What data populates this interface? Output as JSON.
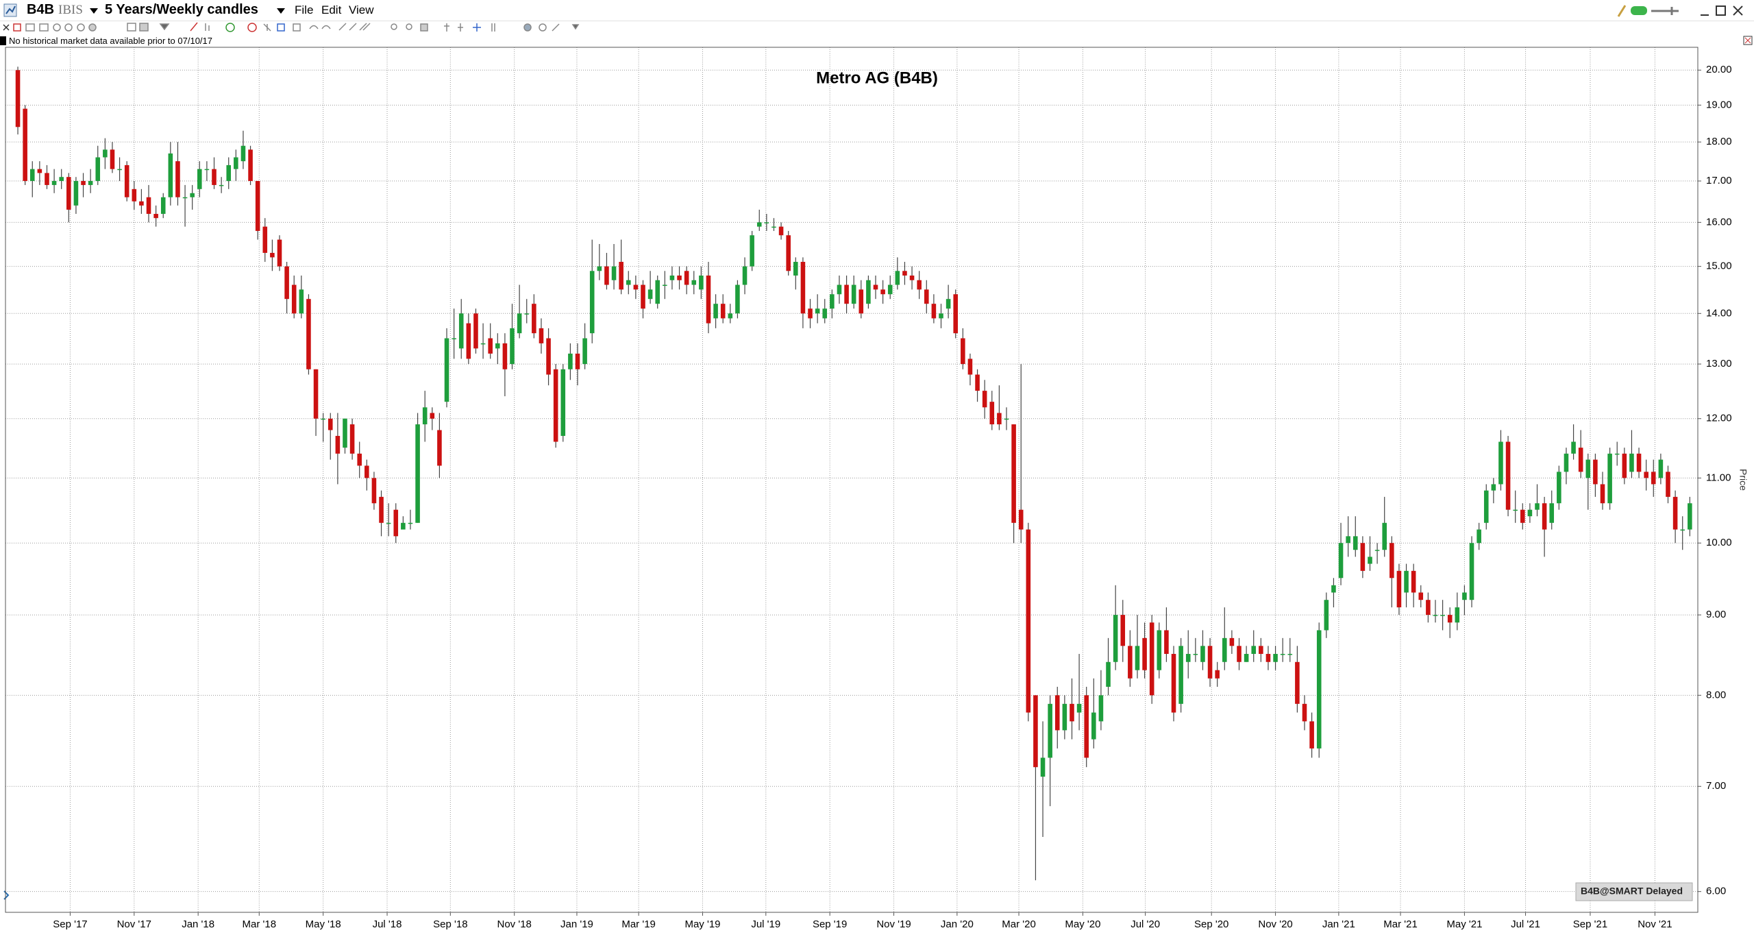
{
  "header": {
    "symbol": "B4B",
    "exchange": "IBIS",
    "period": "5 Years/Weekly candles",
    "menu": [
      "File",
      "Edit",
      "View"
    ],
    "notice": "No historical market data available prior to 07/10/17"
  },
  "chart_data": {
    "type": "candlestick",
    "title": "Metro AG (B4B)",
    "y_label": "Price",
    "watermark": "B4B@SMART Delayed",
    "log_scale": true,
    "grid": true,
    "up_color": "#1e9e3c",
    "down_color": "#cc1111",
    "wick_color": "#444444",
    "xlim": [
      -1.7,
      231.1
    ],
    "ylim": [
      5.82,
      20.68
    ],
    "xticks": [
      {
        "value": 7.2,
        "label": "Sep '17"
      },
      {
        "value": 16.0,
        "label": "Nov '17"
      },
      {
        "value": 24.8,
        "label": "Jan '18"
      },
      {
        "value": 33.2,
        "label": "Mar '18"
      },
      {
        "value": 42.0,
        "label": "May '18"
      },
      {
        "value": 50.8,
        "label": "Jul '18"
      },
      {
        "value": 59.5,
        "label": "Sep '18"
      },
      {
        "value": 68.3,
        "label": "Nov '18"
      },
      {
        "value": 76.9,
        "label": "Jan '19"
      },
      {
        "value": 85.4,
        "label": "Mar '19"
      },
      {
        "value": 94.2,
        "label": "May '19"
      },
      {
        "value": 102.9,
        "label": "Jul '19"
      },
      {
        "value": 111.7,
        "label": "Sep '19"
      },
      {
        "value": 120.5,
        "label": "Nov '19"
      },
      {
        "value": 129.2,
        "label": "Jan '20"
      },
      {
        "value": 137.7,
        "label": "Mar '20"
      },
      {
        "value": 146.5,
        "label": "May '20"
      },
      {
        "value": 155.1,
        "label": "Jul '20"
      },
      {
        "value": 164.2,
        "label": "Sep '20"
      },
      {
        "value": 173.0,
        "label": "Nov '20"
      },
      {
        "value": 181.7,
        "label": "Jan '21"
      },
      {
        "value": 190.2,
        "label": "Mar '21"
      },
      {
        "value": 199.0,
        "label": "May '21"
      },
      {
        "value": 207.4,
        "label": "Jul '21"
      },
      {
        "value": 216.3,
        "label": "Sep '21"
      },
      {
        "value": 225.2,
        "label": "Nov '21"
      }
    ],
    "yticks": [
      {
        "value": 6,
        "label": "6.00"
      },
      {
        "value": 7,
        "label": "7.00"
      },
      {
        "value": 8,
        "label": "8.00"
      },
      {
        "value": 9,
        "label": "9.00"
      },
      {
        "value": 10,
        "label": "10.00"
      },
      {
        "value": 11,
        "label": "11.00"
      },
      {
        "value": 12,
        "label": "12.00"
      },
      {
        "value": 13,
        "label": "13.00"
      },
      {
        "value": 14,
        "label": "14.00"
      },
      {
        "value": 15,
        "label": "15.00"
      },
      {
        "value": 16,
        "label": "16.00"
      },
      {
        "value": 17,
        "label": "17.00"
      },
      {
        "value": 18,
        "label": "18.00"
      },
      {
        "value": 19,
        "label": "19.00"
      },
      {
        "value": 20,
        "label": "20.00"
      }
    ],
    "open": [
      20.0,
      18.9,
      17.0,
      17.3,
      17.2,
      16.9,
      17.0,
      17.1,
      16.4,
      17.0,
      16.9,
      17.0,
      17.6,
      17.8,
      17.3,
      17.4,
      16.8,
      16.5,
      16.6,
      16.2,
      16.2,
      16.6,
      17.5,
      16.6,
      16.6,
      16.8,
      17.3,
      17.3,
      16.9,
      17.0,
      17.3,
      17.5,
      17.8,
      17.0,
      15.9,
      15.3,
      15.6,
      15.0,
      14.6,
      14.0,
      14.3,
      12.9,
      12.0,
      12.0,
      11.7,
      11.5,
      11.9,
      11.4,
      11.2,
      11.0,
      10.7,
      10.3,
      10.5,
      10.2,
      10.3,
      10.3,
      11.9,
      12.1,
      11.8,
      12.3,
      13.5,
      13.3,
      13.8,
      14.0,
      13.4,
      13.5,
      13.3,
      13.4,
      13.0,
      13.6,
      14.0,
      14.2,
      13.7,
      13.5,
      12.9,
      11.7,
      12.9,
      13.2,
      13.0,
      13.6,
      14.9,
      15.0,
      14.7,
      15.1,
      14.6,
      14.6,
      14.6,
      14.3,
      14.2,
      14.6,
      14.7,
      14.8,
      14.9,
      14.6,
      14.5,
      14.8,
      13.9,
      14.2,
      13.9,
      14.0,
      14.6,
      15.0,
      15.9,
      16.0,
      15.9,
      15.9,
      15.7,
      14.8,
      15.1,
      14.1,
      14.0,
      13.9,
      14.1,
      14.4,
      14.6,
      14.2,
      14.5,
      14.2,
      14.6,
      14.5,
      14.4,
      14.6,
      14.9,
      14.8,
      14.7,
      14.5,
      14.2,
      13.9,
      14.1,
      14.4,
      13.5,
      13.1,
      12.8,
      12.5,
      12.3,
      12.1,
      12.0,
      11.9,
      10.5,
      10.2,
      8.0,
      7.1,
      7.3,
      8.0,
      7.6,
      7.9,
      7.8,
      8.0,
      7.5,
      7.7,
      8.1,
      8.4,
      9.0,
      8.6,
      8.3,
      8.7,
      8.9,
      8.3,
      8.8,
      8.5,
      7.9,
      8.4,
      8.5,
      8.4,
      8.6,
      8.3,
      8.4,
      8.7,
      8.6,
      8.4,
      8.5,
      8.6,
      8.5,
      8.4,
      8.5,
      8.5,
      8.4,
      7.9,
      7.7,
      7.4,
      8.8,
      9.3,
      9.5,
      10.0,
      9.9,
      10.0,
      9.7,
      9.9,
      9.9,
      10.0,
      9.6,
      9.3,
      9.6,
      9.3,
      9.2,
      9.0,
      9.0,
      9.0,
      8.9,
      9.2,
      9.2,
      10.0,
      10.3,
      10.8,
      10.9,
      11.6,
      10.5,
      10.5,
      10.4,
      10.5,
      10.6,
      10.3,
      10.6,
      11.1,
      11.4,
      11.5,
      11.0,
      11.3,
      10.9,
      10.6,
      11.4,
      11.4,
      11.1,
      11.4,
      11.1,
      11.1,
      11.0,
      11.1,
      10.7,
      10.2,
      10.2
    ],
    "high": [
      20.1,
      19.0,
      17.5,
      17.5,
      17.4,
      17.3,
      17.3,
      17.2,
      17.1,
      17.2,
      17.3,
      17.9,
      18.1,
      18.0,
      17.6,
      17.5,
      17.0,
      16.8,
      16.9,
      16.4,
      16.7,
      18.0,
      18.0,
      16.9,
      16.9,
      17.5,
      17.5,
      17.6,
      17.1,
      17.6,
      17.8,
      18.3,
      17.9,
      17.0,
      16.1,
      15.6,
      15.7,
      15.1,
      14.8,
      14.8,
      14.4,
      12.9,
      12.1,
      12.1,
      12.1,
      12.0,
      12.0,
      11.6,
      11.3,
      11.1,
      10.8,
      10.6,
      10.6,
      10.4,
      10.5,
      12.1,
      12.5,
      12.2,
      12.1,
      13.7,
      14.1,
      14.3,
      14.0,
      14.1,
      13.8,
      13.8,
      13.6,
      13.6,
      14.2,
      14.6,
      14.3,
      14.4,
      13.9,
      13.7,
      13.0,
      13.0,
      13.4,
      13.4,
      13.8,
      15.6,
      15.5,
      15.3,
      15.5,
      15.6,
      14.9,
      14.8,
      14.7,
      14.9,
      14.8,
      14.9,
      15.0,
      15.0,
      15.0,
      14.9,
      15.0,
      15.1,
      14.4,
      14.4,
      14.2,
      14.7,
      15.2,
      15.8,
      16.3,
      16.2,
      16.1,
      16.0,
      15.8,
      15.2,
      15.2,
      14.3,
      14.4,
      14.3,
      14.5,
      14.8,
      14.8,
      14.8,
      14.7,
      14.8,
      14.8,
      14.7,
      14.8,
      15.2,
      15.1,
      15.0,
      14.9,
      14.7,
      14.4,
      14.2,
      14.6,
      14.5,
      13.7,
      13.2,
      12.9,
      12.7,
      12.5,
      12.6,
      12.2,
      11.9,
      13.0,
      10.3,
      8.0,
      7.7,
      8.0,
      8.1,
      8.0,
      8.2,
      8.5,
      8.1,
      8.2,
      8.3,
      8.7,
      9.4,
      9.2,
      8.8,
      9.0,
      8.9,
      9.0,
      8.9,
      9.1,
      8.6,
      8.7,
      8.8,
      8.7,
      8.8,
      8.7,
      8.4,
      9.1,
      8.8,
      8.7,
      8.6,
      8.8,
      8.7,
      8.6,
      8.6,
      8.7,
      8.7,
      8.6,
      8.0,
      7.8,
      8.9,
      9.3,
      9.5,
      10.3,
      10.4,
      10.4,
      10.1,
      10.1,
      10.0,
      10.7,
      10.1,
      9.7,
      9.7,
      9.7,
      9.4,
      9.3,
      9.2,
      9.2,
      9.1,
      9.3,
      9.4,
      10.1,
      10.3,
      10.9,
      11.0,
      11.8,
      11.7,
      10.8,
      10.6,
      10.6,
      10.9,
      10.7,
      10.8,
      11.2,
      11.5,
      11.9,
      11.8,
      11.4,
      11.4,
      11.1,
      11.5,
      11.6,
      11.5,
      11.8,
      11.5,
      11.3,
      11.3,
      11.4,
      11.2,
      10.8,
      10.4,
      10.7
    ],
    "low": [
      18.2,
      16.9,
      16.6,
      16.9,
      16.8,
      16.7,
      16.8,
      16.0,
      16.2,
      16.6,
      16.7,
      16.9,
      17.3,
      17.2,
      17.0,
      16.5,
      16.3,
      16.2,
      16.0,
      15.9,
      16.1,
      16.4,
      16.4,
      15.9,
      16.3,
      16.6,
      17.0,
      16.8,
      16.7,
      16.8,
      17.0,
      17.3,
      16.9,
      15.6,
      15.1,
      14.9,
      14.9,
      14.0,
      13.9,
      13.9,
      12.8,
      11.7,
      11.6,
      11.3,
      10.9,
      11.4,
      11.3,
      11.0,
      10.8,
      10.5,
      10.1,
      10.1,
      10.0,
      10.2,
      10.2,
      10.3,
      11.6,
      11.8,
      11.0,
      12.2,
      13.1,
      13.1,
      13.0,
      13.2,
      13.1,
      13.1,
      13.0,
      12.4,
      12.9,
      13.5,
      13.8,
      13.5,
      13.2,
      12.6,
      11.5,
      11.6,
      12.7,
      12.6,
      12.9,
      13.4,
      14.7,
      14.5,
      14.5,
      14.4,
      14.4,
      14.3,
      13.9,
      14.2,
      14.1,
      14.3,
      14.5,
      14.5,
      14.4,
      14.4,
      14.3,
      13.6,
      13.7,
      13.8,
      13.8,
      13.9,
      14.4,
      14.9,
      15.8,
      15.8,
      15.8,
      15.6,
      14.8,
      14.5,
      13.7,
      13.7,
      13.8,
      13.8,
      13.9,
      14.2,
      14.0,
      14.1,
      13.9,
      14.1,
      14.3,
      14.2,
      14.3,
      14.5,
      14.6,
      14.5,
      14.3,
      14.0,
      13.8,
      13.7,
      13.9,
      13.5,
      12.9,
      12.6,
      12.3,
      12.0,
      11.8,
      11.8,
      11.8,
      10.0,
      10.0,
      7.7,
      6.1,
      6.5,
      6.8,
      7.4,
      7.5,
      7.5,
      7.6,
      7.2,
      7.4,
      7.6,
      8.0,
      8.3,
      8.4,
      8.1,
      8.2,
      8.2,
      7.9,
      8.2,
      8.4,
      7.7,
      7.8,
      8.2,
      8.4,
      8.3,
      8.1,
      8.1,
      8.3,
      8.5,
      8.3,
      8.4,
      8.4,
      8.4,
      8.3,
      8.3,
      8.4,
      8.4,
      7.8,
      7.6,
      7.3,
      7.3,
      8.7,
      9.1,
      9.4,
      9.8,
      9.8,
      9.5,
      9.6,
      9.7,
      9.8,
      9.1,
      9.0,
      9.1,
      9.1,
      9.1,
      8.9,
      8.9,
      8.8,
      8.7,
      8.8,
      9.0,
      9.1,
      9.9,
      10.2,
      10.6,
      10.8,
      10.4,
      10.3,
      10.2,
      10.3,
      10.4,
      9.8,
      10.2,
      10.5,
      10.9,
      11.3,
      11.0,
      10.5,
      10.7,
      10.5,
      10.5,
      11.2,
      10.9,
      11.0,
      11.0,
      10.8,
      10.7,
      10.9,
      10.6,
      10.0,
      9.9,
      10.1
    ],
    "close": [
      18.4,
      17.0,
      17.3,
      17.2,
      16.9,
      17.0,
      17.1,
      16.3,
      17.0,
      16.9,
      17.0,
      17.6,
      17.8,
      17.3,
      17.3,
      16.6,
      16.5,
      16.4,
      16.2,
      16.1,
      16.6,
      17.7,
      16.6,
      16.6,
      16.7,
      17.3,
      17.3,
      16.9,
      16.9,
      17.4,
      17.6,
      17.9,
      17.0,
      15.8,
      15.3,
      15.2,
      15.0,
      14.3,
      14.0,
      14.5,
      12.9,
      12.0,
      12.0,
      11.8,
      11.4,
      12.0,
      11.4,
      11.2,
      11.0,
      10.6,
      10.3,
      10.3,
      10.1,
      10.3,
      10.3,
      11.9,
      12.2,
      12.0,
      11.2,
      13.5,
      13.5,
      14.0,
      13.1,
      13.3,
      13.4,
      13.2,
      13.4,
      12.9,
      13.7,
      14.0,
      14.0,
      13.6,
      13.4,
      12.8,
      11.6,
      12.9,
      13.2,
      12.9,
      13.5,
      14.9,
      15.0,
      14.6,
      15.0,
      14.5,
      14.7,
      14.5,
      14.1,
      14.5,
      14.7,
      14.6,
      14.8,
      14.7,
      14.6,
      14.7,
      14.8,
      13.8,
      14.2,
      13.9,
      14.0,
      14.6,
      15.0,
      15.7,
      16.0,
      16.0,
      15.9,
      15.7,
      14.9,
      15.1,
      14.0,
      13.9,
      14.1,
      14.1,
      14.4,
      14.6,
      14.2,
      14.6,
      14.0,
      14.7,
      14.5,
      14.4,
      14.6,
      14.9,
      14.8,
      14.7,
      14.5,
      14.2,
      13.9,
      14.0,
      14.3,
      13.6,
      13.0,
      12.8,
      12.5,
      12.2,
      11.9,
      11.9,
      12.0,
      10.3,
      10.2,
      7.8,
      7.2,
      7.3,
      7.9,
      7.6,
      7.9,
      7.7,
      7.9,
      7.3,
      7.8,
      8.0,
      8.4,
      9.0,
      8.6,
      8.2,
      8.6,
      8.3,
      8.0,
      8.8,
      8.5,
      7.8,
      8.6,
      8.5,
      8.5,
      8.6,
      8.2,
      8.2,
      8.7,
      8.6,
      8.4,
      8.5,
      8.6,
      8.5,
      8.4,
      8.5,
      8.5,
      8.5,
      7.9,
      7.7,
      7.4,
      8.8,
      9.2,
      9.4,
      10.0,
      10.1,
      10.1,
      9.6,
      9.8,
      9.9,
      10.3,
      9.5,
      9.1,
      9.6,
      9.3,
      9.2,
      9.0,
      9.0,
      9.0,
      8.9,
      9.1,
      9.3,
      10.0,
      10.2,
      10.8,
      10.9,
      11.6,
      10.5,
      10.5,
      10.3,
      10.5,
      10.6,
      10.2,
      10.6,
      11.1,
      11.4,
      11.6,
      11.1,
      11.3,
      10.9,
      10.6,
      11.4,
      11.4,
      11.0,
      11.4,
      11.1,
      11.0,
      10.9,
      11.3,
      10.7,
      10.2,
      10.2,
      10.6
    ]
  }
}
